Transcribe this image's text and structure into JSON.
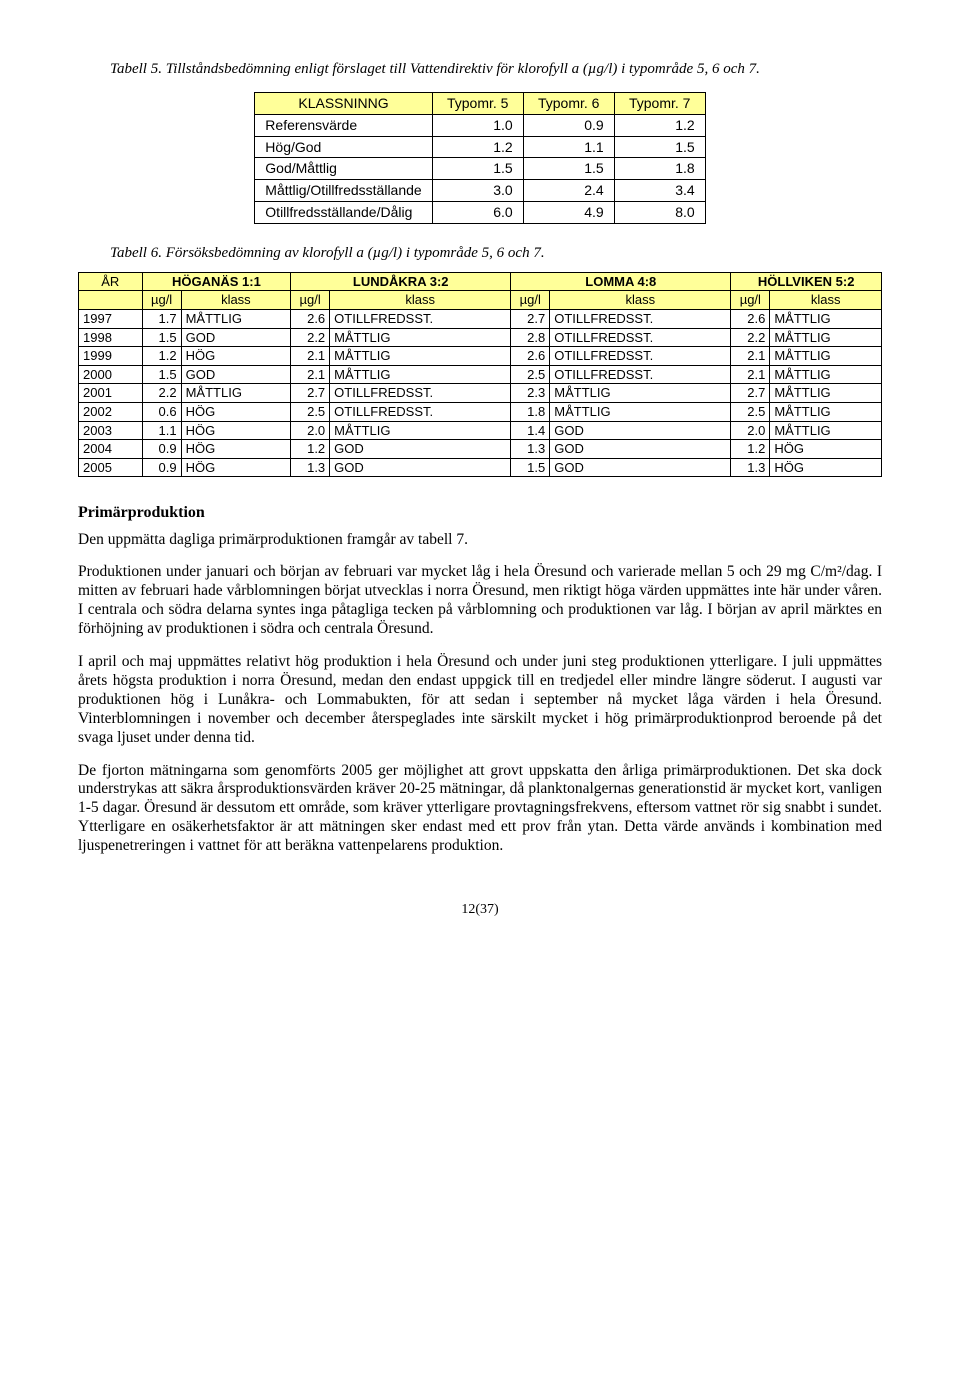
{
  "caption1": "Tabell 5. Tillståndsbedömning enligt förslaget till Vattendirektiv för klorofyll a (µg/l) i typområde 5, 6 och 7.",
  "table1": {
    "headers": [
      "KLASSNINNG",
      "Typomr. 5",
      "Typomr. 6",
      "Typomr. 7"
    ],
    "rows": [
      [
        "Referensvärde",
        "1.0",
        "0.9",
        "1.2"
      ],
      [
        "Hög/God",
        "1.2",
        "1.1",
        "1.5"
      ],
      [
        "God/Måttlig",
        "1.5",
        "1.5",
        "1.8"
      ],
      [
        "Måttlig/Otillfredsställande",
        "3.0",
        "2.4",
        "3.4"
      ],
      [
        "Otillfredsställande/Dålig",
        "6.0",
        "4.9",
        "8.0"
      ]
    ]
  },
  "caption2": "Tabell 6. Försöksbedömning av klorofyll a (µg/l) i typområde 5, 6 och 7.",
  "table2": {
    "groupHeaders": [
      "ÅR",
      "HÖGANÄS 1:1",
      "LUNDÅKRA 3:2",
      "LOMMA 4:8",
      "HÖLLVIKEN 5:2"
    ],
    "subHeaders": [
      "",
      "µg/l",
      "klass",
      "µg/l",
      "klass",
      "µg/l",
      "klass",
      "µg/l",
      "klass"
    ],
    "rows": [
      [
        "1997",
        "1.7",
        "MÅTTLIG",
        "2.6",
        "OTILLFREDSST.",
        "2.7",
        "OTILLFREDSST.",
        "2.6",
        "MÅTTLIG"
      ],
      [
        "1998",
        "1.5",
        "GOD",
        "2.2",
        "MÅTTLIG",
        "2.8",
        "OTILLFREDSST.",
        "2.2",
        "MÅTTLIG"
      ],
      [
        "1999",
        "1.2",
        "HÖG",
        "2.1",
        "MÅTTLIG",
        "2.6",
        "OTILLFREDSST.",
        "2.1",
        "MÅTTLIG"
      ],
      [
        "2000",
        "1.5",
        "GOD",
        "2.1",
        "MÅTTLIG",
        "2.5",
        "OTILLFREDSST.",
        "2.1",
        "MÅTTLIG"
      ],
      [
        "2001",
        "2.2",
        "MÅTTLIG",
        "2.7",
        "OTILLFREDSST.",
        "2.3",
        "MÅTTLIG",
        "2.7",
        "MÅTTLIG"
      ],
      [
        "2002",
        "0.6",
        "HÖG",
        "2.5",
        "OTILLFREDSST.",
        "1.8",
        "MÅTTLIG",
        "2.5",
        "MÅTTLIG"
      ],
      [
        "2003",
        "1.1",
        "HÖG",
        "2.0",
        "MÅTTLIG",
        "1.4",
        "GOD",
        "2.0",
        "MÅTTLIG"
      ],
      [
        "2004",
        "0.9",
        "HÖG",
        "1.2",
        "GOD",
        "1.3",
        "GOD",
        "1.2",
        "HÖG"
      ],
      [
        "2005",
        "0.9",
        "HÖG",
        "1.3",
        "GOD",
        "1.5",
        "GOD",
        "1.3",
        "HÖG"
      ]
    ]
  },
  "sectionTitle": "Primärproduktion",
  "para1": "Den uppmätta dagliga primärproduktionen framgår av tabell 7.",
  "para2": "Produktionen under januari och början av februari var mycket låg i hela Öresund och varierade mellan 5 och 29 mg C/m²/dag. I mitten av februari hade vårblomningen börjat utvecklas i norra Öresund, men riktigt höga värden uppmättes inte här under våren. I centrala och södra delarna syntes inga påtagliga tecken på vårblomning och produktionen var låg. I början av april märktes en förhöjning av produktionen i södra och centrala Öresund.",
  "para3": "I april och maj uppmättes relativt hög produktion i hela Öresund och under juni steg produktionen ytterligare. I juli uppmättes årets högsta produktion i norra Öresund, medan den endast uppgick till en tredjedel eller mindre längre söderut. I augusti var produktionen hög i Lunåkra- och Lommabukten, för att sedan i september nå mycket låga värden i hela Öresund. Vinterblomningen i november och december återspeglades inte särskilt mycket i hög primärproduktionprod beroende på det svaga ljuset under denna tid.",
  "para4": "De fjorton mätningarna som genomförts 2005 ger möjlighet att grovt uppskatta den årliga primärproduktionen. Det ska dock understrykas att säkra årsproduktionsvärden kräver 20-25 mätningar, då planktonalgernas generationstid är mycket kort, vanligen 1-5 dagar. Öresund är dessutom ett område, som kräver ytterligare provtagningsfrekvens, eftersom vattnet rör sig snabbt i sundet. Ytterligare en osäkerhetsfaktor är att mätningen sker endast med ett prov från ytan. Detta värde används i kombination med ljuspenetreringen i vattnet för att beräkna vattenpelarens produktion.",
  "pageNumber": "12(37)"
}
